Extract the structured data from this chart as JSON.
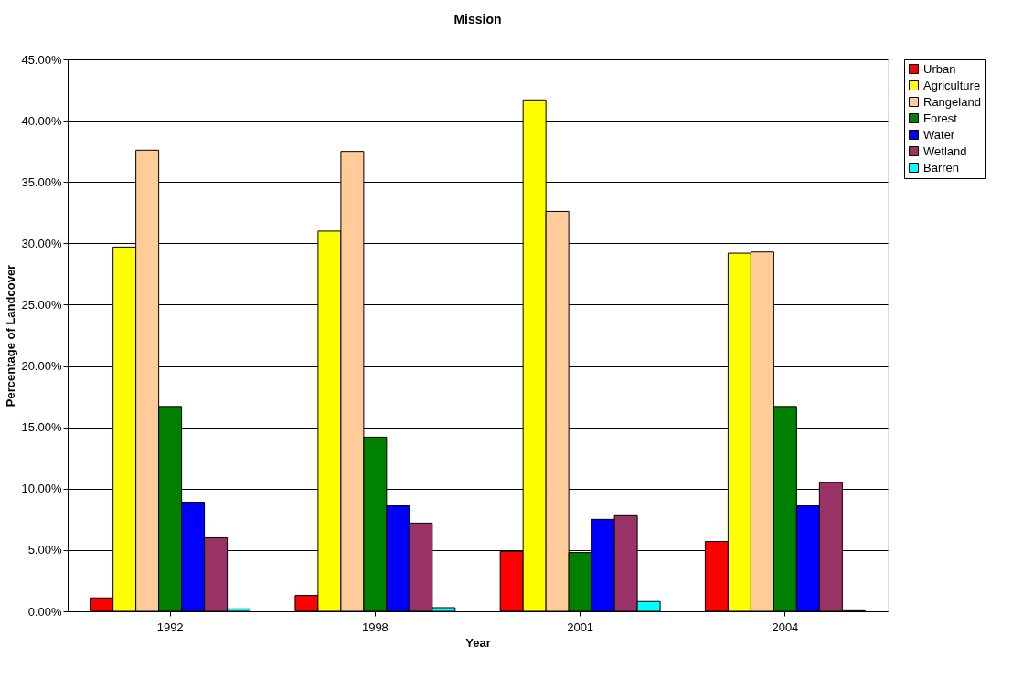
{
  "chart_data": {
    "type": "bar",
    "title": "Mission",
    "xlabel": "Year",
    "ylabel": "Percentage of Landcover",
    "categories": [
      "1992",
      "1998",
      "2001",
      "2004"
    ],
    "series": [
      {
        "name": "Urban",
        "color": "#ff0000",
        "values": [
          0.011,
          0.013,
          0.049,
          0.057
        ]
      },
      {
        "name": "Agriculture",
        "color": "#ffff00",
        "values": [
          0.297,
          0.31,
          0.417,
          0.292
        ]
      },
      {
        "name": "Rangeland",
        "color": "#ffcc99",
        "values": [
          0.376,
          0.375,
          0.326,
          0.293
        ]
      },
      {
        "name": "Forest",
        "color": "#008000",
        "values": [
          0.167,
          0.142,
          0.048,
          0.167
        ]
      },
      {
        "name": "Water",
        "color": "#0000ff",
        "values": [
          0.089,
          0.086,
          0.075,
          0.086
        ]
      },
      {
        "name": "Wetland",
        "color": "#993366",
        "values": [
          0.06,
          0.072,
          0.078,
          0.105
        ]
      },
      {
        "name": "Barren",
        "color": "#00ffff",
        "values": [
          0.002,
          0.003,
          0.008,
          0.0005
        ]
      }
    ],
    "ylim": [
      0,
      0.45
    ],
    "yticks": [
      {
        "value": 0,
        "label": "0.00%"
      },
      {
        "value": 0.05,
        "label": "5.00%"
      },
      {
        "value": 0.1,
        "label": "10.00%"
      },
      {
        "value": 0.15,
        "label": "15.00%"
      },
      {
        "value": 0.2,
        "label": "20.00%"
      },
      {
        "value": 0.25,
        "label": "25.00%"
      },
      {
        "value": 0.3,
        "label": "30.00%"
      },
      {
        "value": 0.35,
        "label": "35.00%"
      },
      {
        "value": 0.4,
        "label": "40.00%"
      },
      {
        "value": 0.45,
        "label": "45.00%"
      }
    ],
    "grid": "y",
    "legend": "right"
  }
}
